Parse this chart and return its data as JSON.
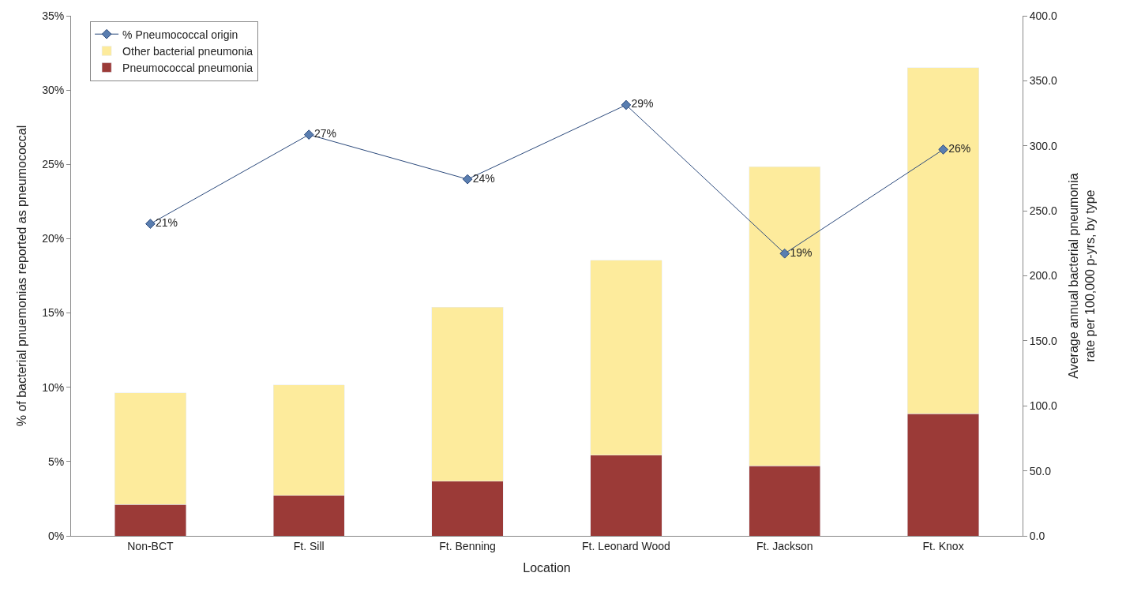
{
  "chart_data": {
    "type": "bar",
    "stacked": true,
    "xlabel": "Location",
    "ylabel": "% of bacterial pnuemonias reported as pneumococcal",
    "y2label": "Average annual bacterial pneumonia rate per 100,000 p-yrs, by type",
    "categories": [
      "Non-BCT",
      "Ft. Sill",
      "Ft. Benning",
      "Ft. Leonard Wood",
      "Ft. Jackson",
      "Ft. Knox"
    ],
    "series": [
      {
        "name": "% Pneumococcal origin",
        "type": "line",
        "color": "#2c4a7c",
        "marker": "diamond",
        "line_style": "solid",
        "values": [
          21,
          27,
          24,
          29,
          19,
          26
        ],
        "value_labels": [
          "21%",
          "27%",
          "24%",
          "29%",
          "19%",
          "26%"
        ]
      },
      {
        "name": "Pneumococcal pneumonia",
        "axis": "y2",
        "color": "#9b3a37",
        "values": [
          24,
          31,
          42,
          62,
          54,
          94
        ]
      },
      {
        "name": "Other bacterial pneumonia",
        "axis": "y2",
        "color": "#fdeb9c",
        "values": [
          86,
          85,
          134,
          150,
          230,
          266
        ]
      }
    ],
    "ylim": [
      0,
      35
    ],
    "yticks": [
      {
        "value": 0,
        "label": "0%"
      },
      {
        "value": 5,
        "label": "5%"
      },
      {
        "value": 10,
        "label": "10%"
      },
      {
        "value": 15,
        "label": "15%"
      },
      {
        "value": 20,
        "label": "20%"
      },
      {
        "value": 25,
        "label": "25%"
      },
      {
        "value": 30,
        "label": "30%"
      },
      {
        "value": 35,
        "label": "35%"
      }
    ],
    "y2lim": [
      0,
      400
    ],
    "y2ticks": [
      {
        "value": 0,
        "label": "0.0"
      },
      {
        "value": 50,
        "label": "50.0"
      },
      {
        "value": 100,
        "label": "100.0"
      },
      {
        "value": 150,
        "label": "150.0"
      },
      {
        "value": 200,
        "label": "200.0"
      },
      {
        "value": 250,
        "label": "250.0"
      },
      {
        "value": 300,
        "label": "300.0"
      },
      {
        "value": 350,
        "label": "350.0"
      },
      {
        "value": 400,
        "label": "400.0"
      }
    ],
    "legend": "top left"
  }
}
